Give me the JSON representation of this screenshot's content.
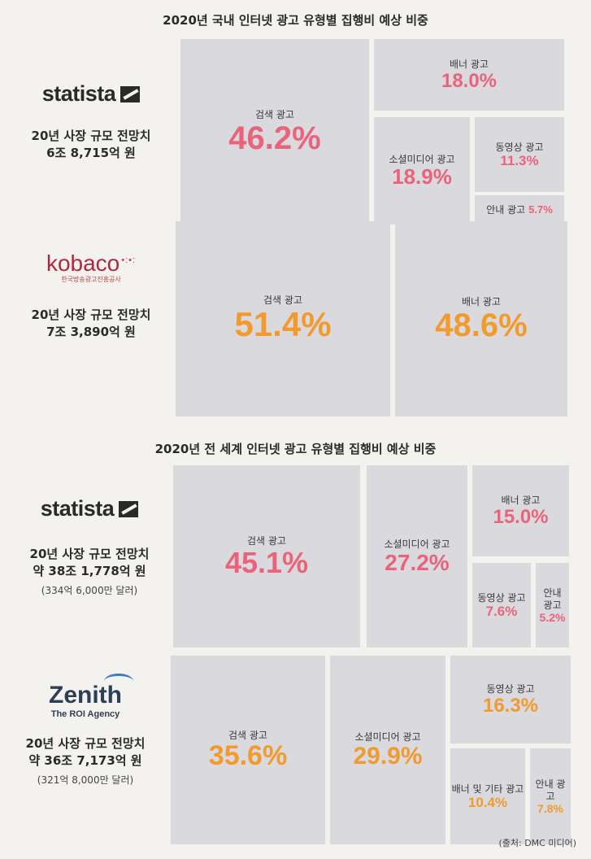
{
  "titles": {
    "domestic": "2020년 국내 인터넷 광고 유형별 집행비 예상 비중",
    "global": "2020년 전 세계 인터넷 광고 유형별 집행비 예상 비중"
  },
  "panels": [
    {
      "brand": "statista",
      "brand_sub": "",
      "label": "20년 사장 규모 전망치",
      "value": "6조 8,715억 원",
      "note": ""
    },
    {
      "brand": "kobaco",
      "brand_sub": "한국방송광고진흥공사",
      "label": "20년 사장 규모 전망치",
      "value": "7조 3,890억 원",
      "note": ""
    },
    {
      "brand": "statista",
      "brand_sub": "",
      "label": "20년 사장 규모 전망치",
      "value": "약 38조 1,778억 원",
      "note": "(334억 6,000만 달러)"
    },
    {
      "brand": "Zenith",
      "brand_sub": "The ROI Agency",
      "label": "20년 사장 규모 전망치",
      "value": "약 36조 7,173억 원",
      "note": "(321억 8,000만 달러)"
    }
  ],
  "chart_data": [
    {
      "type": "treemap",
      "title": "2020년 국내 인터넷 광고 유형별 집행비 예상 비중",
      "source": "statista",
      "unit": "%",
      "categories": [
        "검색 광고",
        "배너 광고",
        "소셜미디어 광고",
        "동영상 광고",
        "안내 광고"
      ],
      "values": [
        46.2,
        18.0,
        18.9,
        11.3,
        5.7
      ],
      "value_labels": [
        "46.2%",
        "18.0%",
        "18.9%",
        "11.3%",
        "5.7%"
      ],
      "color": "#e9647a"
    },
    {
      "type": "treemap",
      "title": "2020년 국내 인터넷 광고 유형별 집행비 예상 비중",
      "source": "kobaco",
      "unit": "%",
      "categories": [
        "검색 광고",
        "배너 광고"
      ],
      "values": [
        51.4,
        48.6
      ],
      "value_labels": [
        "51.4%",
        "48.6%"
      ],
      "color": "#f19a2d"
    },
    {
      "type": "treemap",
      "title": "2020년 전 세계 인터넷 광고 유형별 집행비 예상 비중",
      "source": "statista",
      "unit": "%",
      "categories": [
        "검색 광고",
        "소셜미디어 광고",
        "배너 광고",
        "동영상 광고",
        "안내 광고"
      ],
      "values": [
        45.1,
        27.2,
        15.0,
        7.6,
        5.2
      ],
      "value_labels": [
        "45.1%",
        "27.2%",
        "15.0%",
        "7.6%",
        "5.2%"
      ],
      "color": "#e9647a"
    },
    {
      "type": "treemap",
      "title": "2020년 전 세계 인터넷 광고 유형별 집행비 예상 비중",
      "source": "Zenith",
      "unit": "%",
      "categories": [
        "검색 광고",
        "소셜미디어 광고",
        "동영상 광고",
        "배너 및 기타 광고",
        "안내 광고"
      ],
      "values": [
        35.6,
        29.9,
        16.3,
        10.4,
        7.8
      ],
      "value_labels": [
        "35.6%",
        "29.9%",
        "16.3%",
        "10.4%",
        "7.8%"
      ],
      "color": "#f19a2d"
    }
  ],
  "source_note": "(출처: DMC 미디어)"
}
